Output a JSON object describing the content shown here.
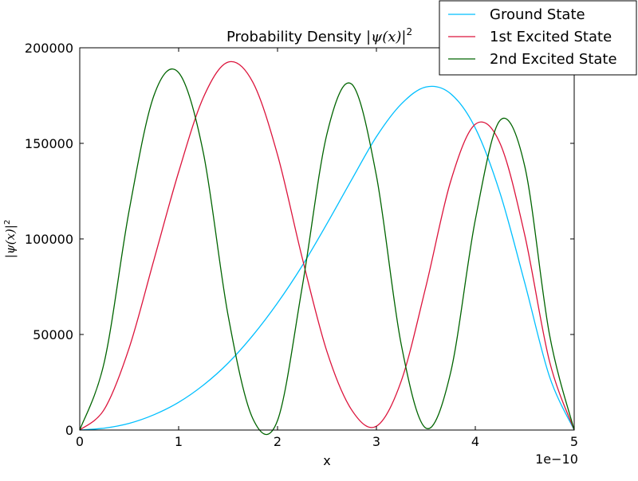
{
  "chart_data": {
    "type": "line",
    "title_text": "Probability Density ",
    "title_math": "|ψ(x)|",
    "title_sup": "2",
    "xlabel": "x",
    "ylabel_math": "|ψ(x)|",
    "ylabel_sup": "2",
    "x_offset_label": "1e−10",
    "xlim": [
      0,
      5
    ],
    "ylim": [
      0,
      200000
    ],
    "xticks": [
      0,
      1,
      2,
      3,
      4,
      5
    ],
    "xtick_labels": [
      "0",
      "1",
      "2",
      "3",
      "4",
      "5"
    ],
    "yticks": [
      0,
      50000,
      100000,
      150000,
      200000
    ],
    "ytick_labels": [
      "0",
      "50000",
      "100000",
      "150000",
      "200000"
    ],
    "grid": false,
    "legend_position": "top-right",
    "x": [
      0,
      0.25,
      0.5,
      0.75,
      1,
      1.25,
      1.5,
      1.75,
      2,
      2.25,
      2.5,
      2.75,
      3,
      3.25,
      3.5,
      3.75,
      4,
      4.25,
      4.5,
      4.75,
      5
    ],
    "series": [
      {
        "name": "Ground State",
        "color": "#00bfff",
        "values": [
          0,
          1000,
          3500,
          8000,
          14500,
          23500,
          35000,
          49500,
          66500,
          86000,
          108000,
          131000,
          153500,
          170500,
          179500,
          176000,
          158000,
          124000,
          77000,
          28000,
          0
        ]
      },
      {
        "name": "1st Excited State",
        "color": "#dc143c",
        "values": [
          0,
          11000,
          43000,
          89000,
          135000,
          174000,
          192500,
          182000,
          144000,
          90000,
          41000,
          10500,
          2000,
          25500,
          75000,
          130000,
          160000,
          150000,
          102000,
          36000,
          0
        ]
      },
      {
        "name": "2nd Excited State",
        "color": "#006400",
        "values": [
          0,
          36000,
          115000,
          175000,
          187000,
          145000,
          60000,
          6000,
          5000,
          75000,
          155000,
          181000,
          133000,
          45000,
          1000,
          30000,
          110000,
          162000,
          138000,
          50000,
          0
        ]
      }
    ]
  }
}
